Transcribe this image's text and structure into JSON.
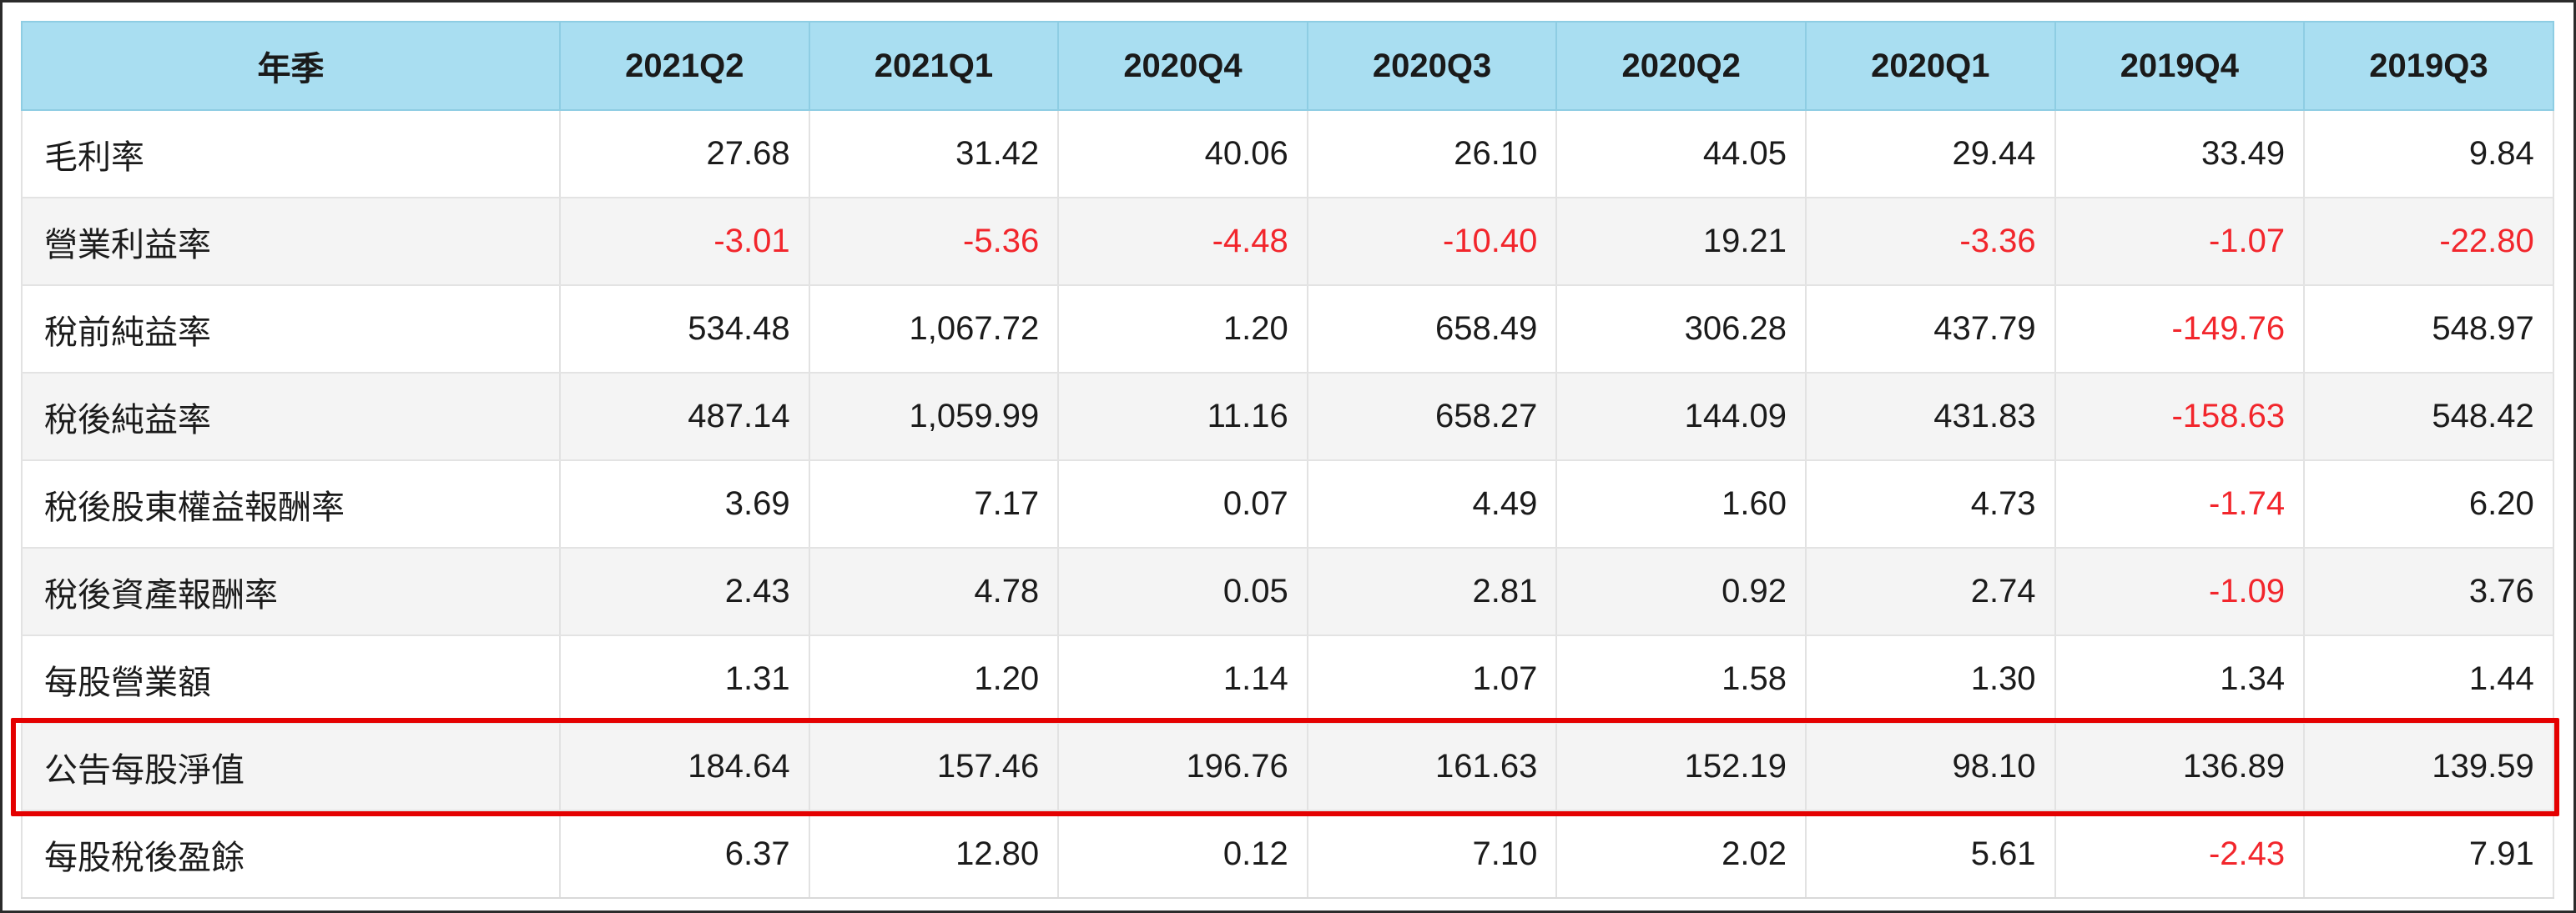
{
  "table": {
    "header": {
      "label": "年季",
      "quarters": [
        "2021Q2",
        "2021Q1",
        "2020Q4",
        "2020Q3",
        "2020Q2",
        "2020Q1",
        "2019Q4",
        "2019Q3"
      ]
    },
    "rows": [
      {
        "label": "毛利率",
        "values": [
          "27.68",
          "31.42",
          "40.06",
          "26.10",
          "44.05",
          "29.44",
          "33.49",
          "9.84"
        ]
      },
      {
        "label": "營業利益率",
        "values": [
          "-3.01",
          "-5.36",
          "-4.48",
          "-10.40",
          "19.21",
          "-3.36",
          "-1.07",
          "-22.80"
        ]
      },
      {
        "label": "稅前純益率",
        "values": [
          "534.48",
          "1,067.72",
          "1.20",
          "658.49",
          "306.28",
          "437.79",
          "-149.76",
          "548.97"
        ]
      },
      {
        "label": "稅後純益率",
        "values": [
          "487.14",
          "1,059.99",
          "11.16",
          "658.27",
          "144.09",
          "431.83",
          "-158.63",
          "548.42"
        ]
      },
      {
        "label": "稅後股東權益報酬率",
        "values": [
          "3.69",
          "7.17",
          "0.07",
          "4.49",
          "1.60",
          "4.73",
          "-1.74",
          "6.20"
        ]
      },
      {
        "label": "稅後資產報酬率",
        "values": [
          "2.43",
          "4.78",
          "0.05",
          "2.81",
          "0.92",
          "2.74",
          "-1.09",
          "3.76"
        ]
      },
      {
        "label": "每股營業額",
        "values": [
          "1.31",
          "1.20",
          "1.14",
          "1.07",
          "1.58",
          "1.30",
          "1.34",
          "1.44"
        ]
      },
      {
        "label": "公告每股淨值",
        "values": [
          "184.64",
          "157.46",
          "196.76",
          "161.63",
          "152.19",
          "98.10",
          "136.89",
          "139.59"
        ]
      },
      {
        "label": "每股稅後盈餘",
        "values": [
          "6.37",
          "12.80",
          "0.12",
          "7.10",
          "2.02",
          "5.61",
          "-2.43",
          "7.91"
        ]
      }
    ],
    "highlighted_row": 7
  },
  "colors": {
    "header_bg": "#a9def1",
    "negative": "#f2262c",
    "highlight_border": "#e40000",
    "row_alt_bg": "#f4f4f4"
  }
}
